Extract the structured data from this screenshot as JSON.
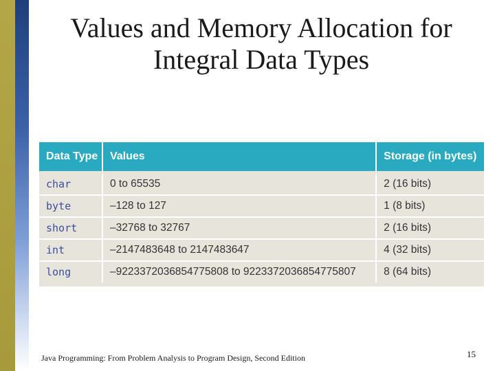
{
  "slide": {
    "title": "Values and Memory Allocation for Integral Data Types",
    "footer": "Java Programming: From Problem Analysis to Program Design, Second Edition",
    "page_number": "15"
  },
  "table": {
    "headers": [
      "Data Type",
      "Values",
      "Storage (in bytes)"
    ],
    "rows": [
      [
        "char",
        "0 to 65535",
        "2 (16 bits)"
      ],
      [
        "byte",
        "–128 to 127",
        "1 (8 bits)"
      ],
      [
        "short",
        "–32768 to 32767",
        "2 (16 bits)"
      ],
      [
        "int",
        "–2147483648 to 2147483647",
        "4 (32 bits)"
      ],
      [
        "long",
        "–9223372036854775808 to 9223372036854775807",
        "8 (64 bits)"
      ]
    ]
  },
  "colors": {
    "header_bg": "#2aaac0",
    "row_bg": "#e7e4dc",
    "type_text": "#3a4e9c",
    "accent_olive": "#b3a646",
    "accent_blue": "#1e3f7a"
  }
}
